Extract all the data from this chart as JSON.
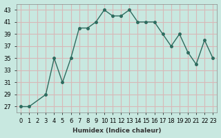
{
  "x_vals": [
    0,
    1,
    3,
    4,
    5,
    6,
    7,
    8,
    9,
    10,
    11,
    12,
    13,
    14,
    15,
    16,
    17,
    18,
    19,
    20,
    21,
    22,
    23
  ],
  "y_vals": [
    27,
    27,
    29,
    35,
    31,
    35,
    40,
    40,
    41,
    43,
    42,
    42,
    43,
    41,
    41,
    41,
    39,
    37,
    39,
    36,
    34,
    38,
    35
  ],
  "line_color": "#2d6b5e",
  "marker_color": "#2d6b5e",
  "bg_color": "#c8e8e0",
  "grid_color": "#d8b8b8",
  "xlabel": "Humidex (Indice chaleur)",
  "ylim": [
    26,
    44
  ],
  "xlim": [
    -0.5,
    23.5
  ],
  "yticks": [
    27,
    29,
    31,
    33,
    35,
    37,
    39,
    41,
    43
  ],
  "xticks": [
    0,
    1,
    2,
    3,
    4,
    5,
    6,
    7,
    8,
    9,
    10,
    11,
    12,
    13,
    14,
    15,
    16,
    17,
    18,
    19,
    20,
    21,
    22,
    23
  ]
}
